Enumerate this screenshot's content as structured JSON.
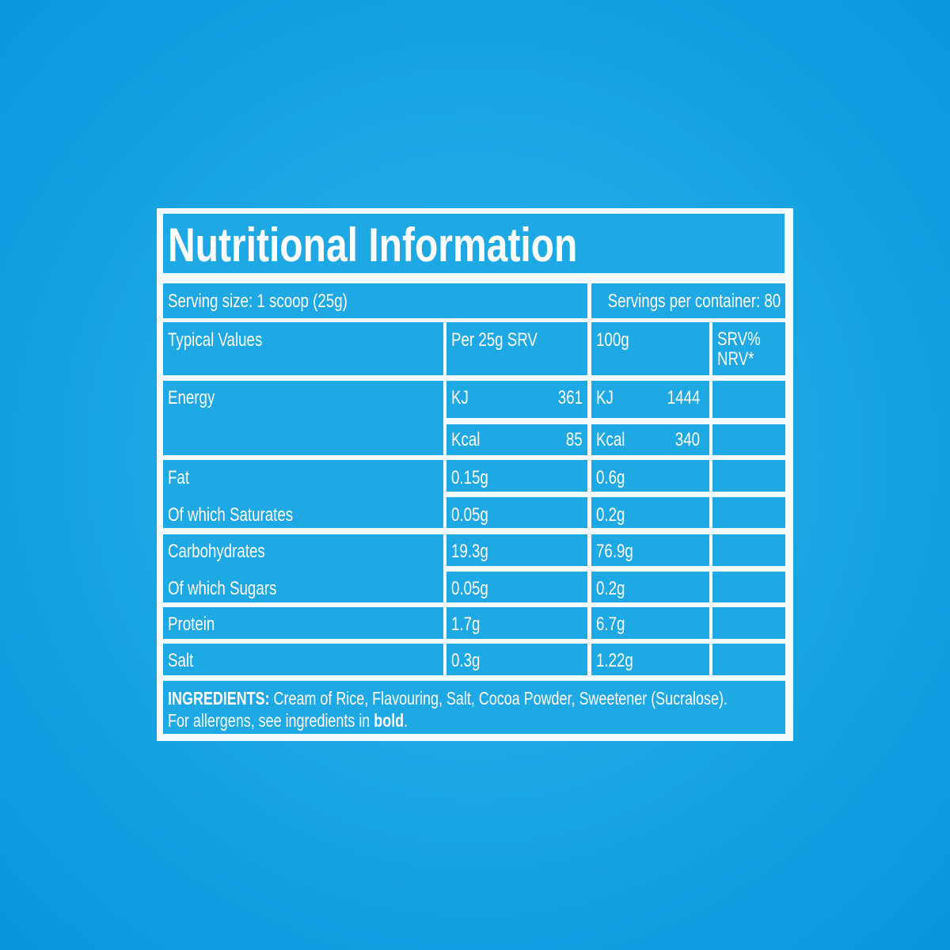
{
  "title": "Nutritional Information",
  "serving_size": "Serving size: 1 scoop (25g)",
  "servings_per_container": "Servings per container: 80",
  "headers": {
    "typical": "Typical Values",
    "per_srv": "Per 25g SRV",
    "per_100g": "100g",
    "nrv_line1": "SRV%",
    "nrv_line2": "NRV*"
  },
  "energy": {
    "label": "Energy",
    "kj": {
      "unit": "KJ",
      "srv": "361",
      "per100": "1444"
    },
    "kcal": {
      "unit": "Kcal",
      "srv": "85",
      "per100": "340"
    }
  },
  "rows": [
    {
      "label": "Fat",
      "srv": "0.15g",
      "per100": "0.6g"
    },
    {
      "label": "Of which Saturates",
      "srv": "0.05g",
      "per100": "0.2g"
    },
    {
      "label": "Carbohydrates",
      "srv": "19.3g",
      "per100": "76.9g"
    },
    {
      "label": "Of which Sugars",
      "srv": "0.05g",
      "per100": "0.2g"
    },
    {
      "label": "Protein",
      "srv": "1.7g",
      "per100": "6.7g"
    },
    {
      "label": "Salt",
      "srv": "0.3g",
      "per100": "1.22g"
    }
  ],
  "ingredients": {
    "label": "INGREDIENTS:",
    "text": " Cream of Rice, Flavouring, Salt, Cocoa Powder, Sweetener (Sucralose).",
    "allergen_prefix": "For allergens, see ingredients in ",
    "allergen_bold": "bold",
    "allergen_suffix": "."
  },
  "colors": {
    "background": "#1ea8e4",
    "lines": "#f4fbff"
  }
}
